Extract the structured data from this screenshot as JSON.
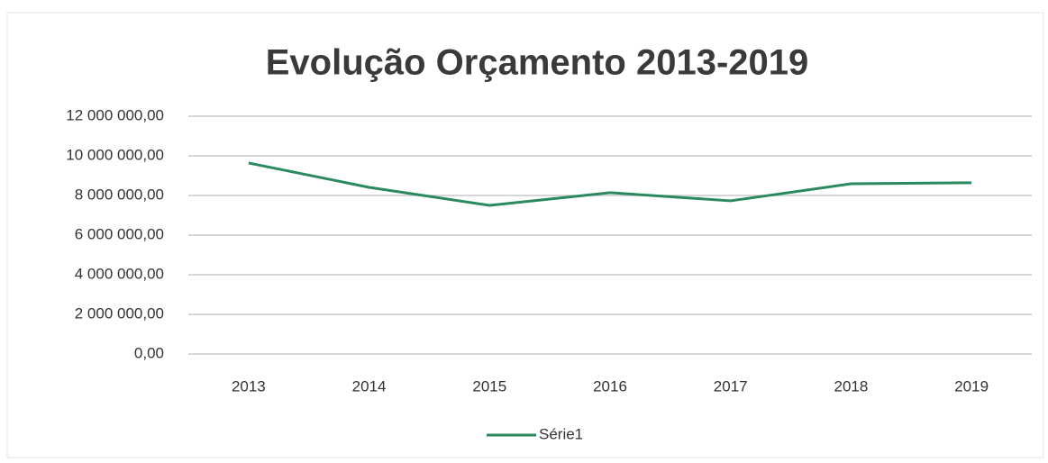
{
  "chart_data": {
    "type": "line",
    "title": "Evolução Orçamento 2013-2019",
    "categories": [
      "2013",
      "2014",
      "2015",
      "2016",
      "2017",
      "2018",
      "2019"
    ],
    "series": [
      {
        "name": "Série1",
        "color": "#2a8a5e",
        "values": [
          9640000,
          8410000,
          7500000,
          8140000,
          7730000,
          8590000,
          8640000
        ]
      }
    ],
    "ylim": [
      0,
      12000000
    ],
    "yticks": [
      {
        "value": 0,
        "label": "0,00"
      },
      {
        "value": 2000000,
        "label": "2 000 000,00"
      },
      {
        "value": 4000000,
        "label": "4 000 000,00"
      },
      {
        "value": 6000000,
        "label": "6 000 000,00"
      },
      {
        "value": 8000000,
        "label": "8 000 000,00"
      },
      {
        "value": 10000000,
        "label": "10 000 000,00"
      },
      {
        "value": 12000000,
        "label": "12 000 000,00"
      }
    ],
    "grid": true,
    "legend": "bottom"
  }
}
